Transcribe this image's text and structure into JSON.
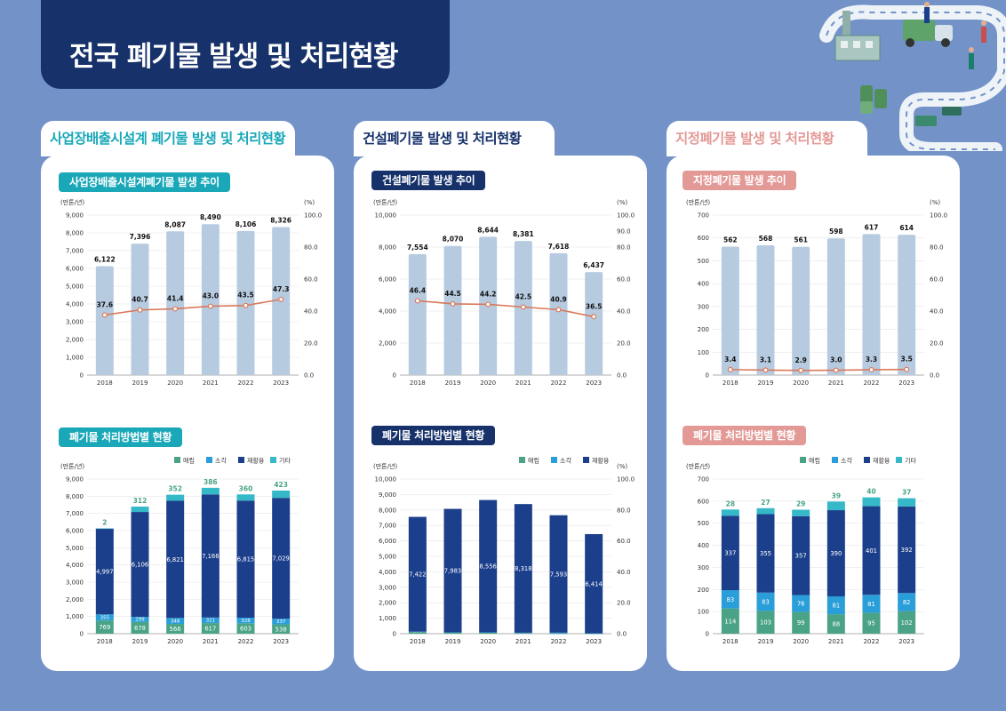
{
  "page": {
    "title": "전국 폐기물 발생 및 처리현황"
  },
  "colors": {
    "navy": "#1b3f8b",
    "bar_light": "#b7cbe0",
    "line": "#d9785a",
    "landfill": "#4aa386",
    "incineration": "#2a9ed8",
    "recycle": "#1b3f8b",
    "other": "#35b8c8",
    "teal_text": "#1aa8b8",
    "navy_text": "#17326b",
    "pink": "#e39a97"
  },
  "sections": [
    {
      "tab": "사업장배출시설계 폐기물 발생 및 처리현황",
      "chart1_title": "사업장배출시설계폐기물 발생 추이",
      "chart2_title": "폐기물 처리방법별 현황"
    },
    {
      "tab": "건설폐기물 발생 및 처리현황",
      "chart1_title": "건설폐기물 발생 추이",
      "chart2_title": "폐기물 처리방법별 현황"
    },
    {
      "tab": "지정폐기물 발생 및 처리현황",
      "chart1_title": "지정폐기물 발생 추이",
      "chart2_title": "폐기물 처리방법별 현황"
    }
  ],
  "legend_labels": [
    "매립",
    "소각",
    "재활용",
    "기타"
  ],
  "chart_data": [
    {
      "id": "s1c1",
      "type": "bar+line",
      "ylabel": "(만톤/년)",
      "y2label": "(%)",
      "categories": [
        "2018",
        "2019",
        "2020",
        "2021",
        "2022",
        "2023"
      ],
      "ylim": [
        0,
        9000
      ],
      "yticks": [
        0,
        1000,
        2000,
        3000,
        4000,
        5000,
        6000,
        7000,
        8000,
        9000
      ],
      "y2lim": [
        0,
        100
      ],
      "y2ticks": [
        0,
        20,
        40,
        60,
        80,
        100
      ],
      "bars": [
        6122,
        7396,
        8087,
        8490,
        8106,
        8326
      ],
      "line": [
        37.6,
        40.7,
        41.4,
        43.0,
        43.5,
        47.3
      ]
    },
    {
      "id": "s2c1",
      "type": "bar+line",
      "ylabel": "(만톤/년)",
      "y2label": "(%)",
      "categories": [
        "2018",
        "2019",
        "2020",
        "2021",
        "2022",
        "2023"
      ],
      "ylim": [
        0,
        10000
      ],
      "yticks": [
        0,
        2000,
        4000,
        6000,
        8000,
        10000
      ],
      "y2lim": [
        0,
        100
      ],
      "y2ticks": [
        0,
        20,
        40,
        60,
        80,
        90,
        100
      ],
      "bars": [
        7554,
        8070,
        8644,
        8381,
        7618,
        6437
      ],
      "line": [
        46.4,
        44.5,
        44.2,
        42.5,
        40.9,
        36.5
      ]
    },
    {
      "id": "s3c1",
      "type": "bar+line",
      "ylabel": "(만톤/년)",
      "y2label": "(%)",
      "categories": [
        "2018",
        "2019",
        "2020",
        "2021",
        "2022",
        "2023"
      ],
      "ylim": [
        0,
        700
      ],
      "yticks": [
        0,
        100,
        200,
        300,
        400,
        500,
        600,
        700
      ],
      "y2lim": [
        0,
        100
      ],
      "y2ticks": [
        0,
        20,
        40,
        60,
        80,
        100
      ],
      "bars": [
        562,
        568,
        561,
        598,
        617,
        614
      ],
      "line": [
        3.4,
        3.1,
        2.9,
        3.0,
        3.3,
        3.5
      ]
    },
    {
      "id": "s1c2",
      "type": "stacked-bar",
      "ylabel": "(만톤/년)",
      "categories": [
        "2018",
        "2019",
        "2020",
        "2021",
        "2022",
        "2023"
      ],
      "ylim": [
        0,
        9000
      ],
      "yticks": [
        0,
        1000,
        2000,
        3000,
        4000,
        5000,
        6000,
        7000,
        8000,
        9000
      ],
      "legend": [
        "매립",
        "소각",
        "재활용",
        "기타"
      ],
      "series": [
        {
          "name": "매립",
          "values": [
            769,
            678,
            566,
            617,
            603,
            538
          ]
        },
        {
          "name": "소각",
          "values": [
            355,
            299,
            348,
            321,
            328,
            337
          ]
        },
        {
          "name": "재활용",
          "values": [
            4997,
            6106,
            6821,
            7166,
            6815,
            7029
          ]
        },
        {
          "name": "기타",
          "values": [
            2,
            312,
            352,
            386,
            360,
            423
          ]
        }
      ]
    },
    {
      "id": "s2c2",
      "type": "stacked-bar",
      "ylabel": "(만톤/년)",
      "y2label": "(%)",
      "categories": [
        "2018",
        "2019",
        "2020",
        "2021",
        "2022",
        "2023"
      ],
      "ylim": [
        0,
        10000
      ],
      "yticks": [
        0,
        1000,
        2000,
        3000,
        4000,
        5000,
        6000,
        7000,
        8000,
        9000,
        10000
      ],
      "y2lim": [
        0,
        100
      ],
      "y2ticks": [
        0,
        20,
        40,
        60,
        80,
        100
      ],
      "legend": [
        "매립",
        "소각",
        "재활용"
      ],
      "series": [
        {
          "name": "매립",
          "values": [
            108,
            65,
            73,
            49,
            11,
            9
          ]
        },
        {
          "name": "소각",
          "values": [
            24,
            23,
            15,
            14,
            55,
            15
          ]
        },
        {
          "name": "재활용",
          "values": [
            7422,
            7983,
            8556,
            8318,
            7593,
            6414
          ]
        }
      ]
    },
    {
      "id": "s3c2",
      "type": "stacked-bar",
      "ylabel": "(만톤/년)",
      "categories": [
        "2018",
        "2019",
        "2020",
        "2021",
        "2022",
        "2023"
      ],
      "ylim": [
        0,
        700
      ],
      "yticks": [
        0,
        100,
        200,
        300,
        400,
        500,
        600,
        700
      ],
      "legend": [
        "매립",
        "소각",
        "재활용",
        "기타"
      ],
      "series": [
        {
          "name": "매립",
          "values": [
            114,
            103,
            99,
            88,
            95,
            102
          ]
        },
        {
          "name": "소각",
          "values": [
            83,
            83,
            76,
            81,
            81,
            82
          ]
        },
        {
          "name": "재활용",
          "values": [
            337,
            355,
            357,
            390,
            401,
            392
          ]
        },
        {
          "name": "기타",
          "values": [
            28,
            27,
            29,
            39,
            40,
            37
          ]
        }
      ]
    }
  ]
}
